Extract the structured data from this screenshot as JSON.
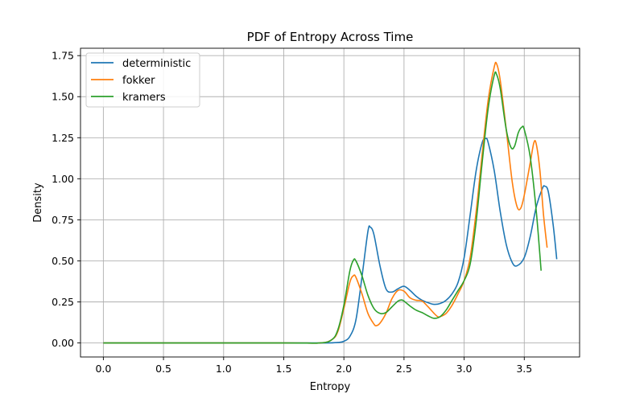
{
  "chart_data": {
    "type": "line",
    "title": "PDF of Entropy Across Time",
    "xlabel": "Entropy",
    "ylabel": "Density",
    "xlim": [
      -0.19,
      3.96
    ],
    "ylim": [
      -0.0855,
      1.795
    ],
    "xticks": [
      0.0,
      0.5,
      1.0,
      1.5,
      2.0,
      2.5,
      3.0,
      3.5
    ],
    "xtick_labels": [
      "0.0",
      "0.5",
      "1.0",
      "1.5",
      "2.0",
      "2.5",
      "3.0",
      "3.5"
    ],
    "yticks": [
      0.0,
      0.25,
      0.5,
      0.75,
      1.0,
      1.25,
      1.5,
      1.75
    ],
    "ytick_labels": [
      "0.00",
      "0.25",
      "0.50",
      "0.75",
      "1.00",
      "1.25",
      "1.50",
      "1.75"
    ],
    "grid": true,
    "legend_position": "top-left",
    "series": [
      {
        "name": "deterministic",
        "color": "#1f77b4",
        "points": [
          [
            0.0,
            0.0
          ],
          [
            1.5,
            0.0
          ],
          [
            1.85,
            0.0
          ],
          [
            1.95,
            0.003
          ],
          [
            2.0,
            0.01
          ],
          [
            2.05,
            0.04
          ],
          [
            2.1,
            0.14
          ],
          [
            2.15,
            0.4
          ],
          [
            2.2,
            0.68
          ],
          [
            2.22,
            0.705
          ],
          [
            2.25,
            0.66
          ],
          [
            2.3,
            0.47
          ],
          [
            2.35,
            0.33
          ],
          [
            2.4,
            0.31
          ],
          [
            2.45,
            0.33
          ],
          [
            2.5,
            0.345
          ],
          [
            2.55,
            0.32
          ],
          [
            2.6,
            0.285
          ],
          [
            2.65,
            0.26
          ],
          [
            2.7,
            0.245
          ],
          [
            2.75,
            0.235
          ],
          [
            2.8,
            0.24
          ],
          [
            2.85,
            0.26
          ],
          [
            2.9,
            0.3
          ],
          [
            2.95,
            0.37
          ],
          [
            3.0,
            0.52
          ],
          [
            3.05,
            0.78
          ],
          [
            3.1,
            1.05
          ],
          [
            3.15,
            1.22
          ],
          [
            3.18,
            1.245
          ],
          [
            3.2,
            1.22
          ],
          [
            3.25,
            1.05
          ],
          [
            3.3,
            0.8
          ],
          [
            3.35,
            0.6
          ],
          [
            3.4,
            0.49
          ],
          [
            3.44,
            0.47
          ],
          [
            3.5,
            0.52
          ],
          [
            3.55,
            0.65
          ],
          [
            3.6,
            0.83
          ],
          [
            3.65,
            0.94
          ],
          [
            3.67,
            0.955
          ],
          [
            3.7,
            0.92
          ],
          [
            3.74,
            0.72
          ],
          [
            3.77,
            0.51
          ]
        ]
      },
      {
        "name": "fokker",
        "color": "#ff7f0e",
        "points": [
          [
            0.0,
            0.0
          ],
          [
            1.5,
            0.0
          ],
          [
            1.8,
            0.0
          ],
          [
            1.9,
            0.02
          ],
          [
            1.95,
            0.07
          ],
          [
            2.0,
            0.21
          ],
          [
            2.05,
            0.37
          ],
          [
            2.08,
            0.41
          ],
          [
            2.1,
            0.4
          ],
          [
            2.15,
            0.3
          ],
          [
            2.2,
            0.18
          ],
          [
            2.25,
            0.115
          ],
          [
            2.27,
            0.105
          ],
          [
            2.3,
            0.12
          ],
          [
            2.35,
            0.18
          ],
          [
            2.4,
            0.27
          ],
          [
            2.45,
            0.32
          ],
          [
            2.5,
            0.315
          ],
          [
            2.55,
            0.275
          ],
          [
            2.6,
            0.26
          ],
          [
            2.65,
            0.255
          ],
          [
            2.7,
            0.22
          ],
          [
            2.75,
            0.18
          ],
          [
            2.78,
            0.16
          ],
          [
            2.8,
            0.16
          ],
          [
            2.85,
            0.18
          ],
          [
            2.9,
            0.23
          ],
          [
            2.95,
            0.3
          ],
          [
            3.0,
            0.38
          ],
          [
            3.05,
            0.52
          ],
          [
            3.1,
            0.8
          ],
          [
            3.15,
            1.15
          ],
          [
            3.2,
            1.48
          ],
          [
            3.25,
            1.68
          ],
          [
            3.27,
            1.7
          ],
          [
            3.3,
            1.6
          ],
          [
            3.35,
            1.3
          ],
          [
            3.4,
            0.98
          ],
          [
            3.44,
            0.83
          ],
          [
            3.47,
            0.82
          ],
          [
            3.5,
            0.9
          ],
          [
            3.55,
            1.1
          ],
          [
            3.58,
            1.22
          ],
          [
            3.6,
            1.21
          ],
          [
            3.63,
            1.05
          ],
          [
            3.66,
            0.78
          ],
          [
            3.69,
            0.58
          ]
        ]
      },
      {
        "name": "kramers",
        "color": "#2ca02c",
        "points": [
          [
            0.0,
            0.0
          ],
          [
            1.5,
            0.0
          ],
          [
            1.8,
            0.0
          ],
          [
            1.9,
            0.02
          ],
          [
            1.95,
            0.08
          ],
          [
            2.0,
            0.23
          ],
          [
            2.05,
            0.44
          ],
          [
            2.08,
            0.505
          ],
          [
            2.1,
            0.5
          ],
          [
            2.15,
            0.41
          ],
          [
            2.2,
            0.29
          ],
          [
            2.25,
            0.21
          ],
          [
            2.3,
            0.18
          ],
          [
            2.35,
            0.185
          ],
          [
            2.4,
            0.22
          ],
          [
            2.45,
            0.255
          ],
          [
            2.48,
            0.262
          ],
          [
            2.5,
            0.255
          ],
          [
            2.55,
            0.225
          ],
          [
            2.6,
            0.2
          ],
          [
            2.65,
            0.185
          ],
          [
            2.7,
            0.165
          ],
          [
            2.75,
            0.15
          ],
          [
            2.8,
            0.16
          ],
          [
            2.85,
            0.2
          ],
          [
            2.9,
            0.26
          ],
          [
            2.95,
            0.32
          ],
          [
            3.0,
            0.38
          ],
          [
            3.05,
            0.48
          ],
          [
            3.1,
            0.74
          ],
          [
            3.15,
            1.1
          ],
          [
            3.2,
            1.43
          ],
          [
            3.25,
            1.63
          ],
          [
            3.27,
            1.635
          ],
          [
            3.3,
            1.55
          ],
          [
            3.35,
            1.3
          ],
          [
            3.39,
            1.19
          ],
          [
            3.42,
            1.2
          ],
          [
            3.45,
            1.28
          ],
          [
            3.48,
            1.315
          ],
          [
            3.5,
            1.3
          ],
          [
            3.55,
            1.13
          ],
          [
            3.6,
            0.8
          ],
          [
            3.64,
            0.44
          ]
        ]
      }
    ]
  }
}
